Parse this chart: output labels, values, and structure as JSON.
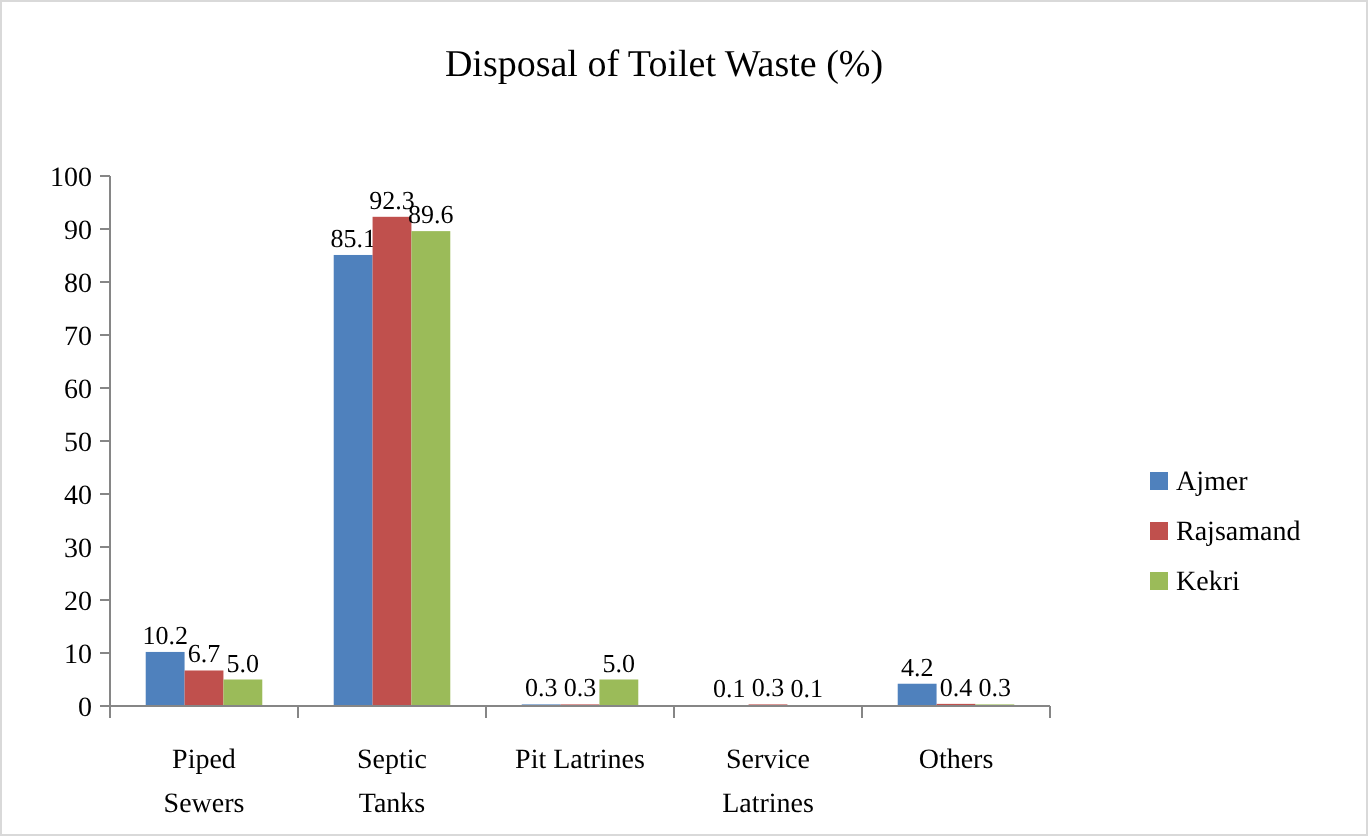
{
  "chart_data": {
    "type": "bar",
    "title": "Disposal of Toilet Waste (%)",
    "categories": [
      "Piped\nSewers",
      "Septic\nTanks",
      "Pit Latrines",
      "Service\nLatrines",
      "Others"
    ],
    "series": [
      {
        "name": "Ajmer",
        "color": "#4f81bd",
        "values": [
          10.2,
          85.1,
          0.3,
          0.1,
          4.2
        ],
        "value_labels": [
          "10.2",
          "85.1",
          "0.3",
          "0.1",
          "4.2"
        ]
      },
      {
        "name": "Rajsamand",
        "color": "#c0504d",
        "values": [
          6.7,
          92.3,
          0.3,
          0.3,
          0.4
        ],
        "value_labels": [
          "6.7",
          "92.3",
          "0.3",
          "0.3",
          "0.4"
        ]
      },
      {
        "name": "Kekri",
        "color": "#9bbb59",
        "values": [
          5.0,
          89.6,
          5.0,
          0.1,
          0.3
        ],
        "value_labels": [
          "5.0",
          "89.6",
          "5.0",
          "0.1",
          "0.3"
        ]
      }
    ],
    "ylim": [
      0,
      100
    ],
    "yticks": [
      0,
      10,
      20,
      30,
      40,
      50,
      60,
      70,
      80,
      90,
      100
    ],
    "grid": false,
    "legend": "right"
  }
}
